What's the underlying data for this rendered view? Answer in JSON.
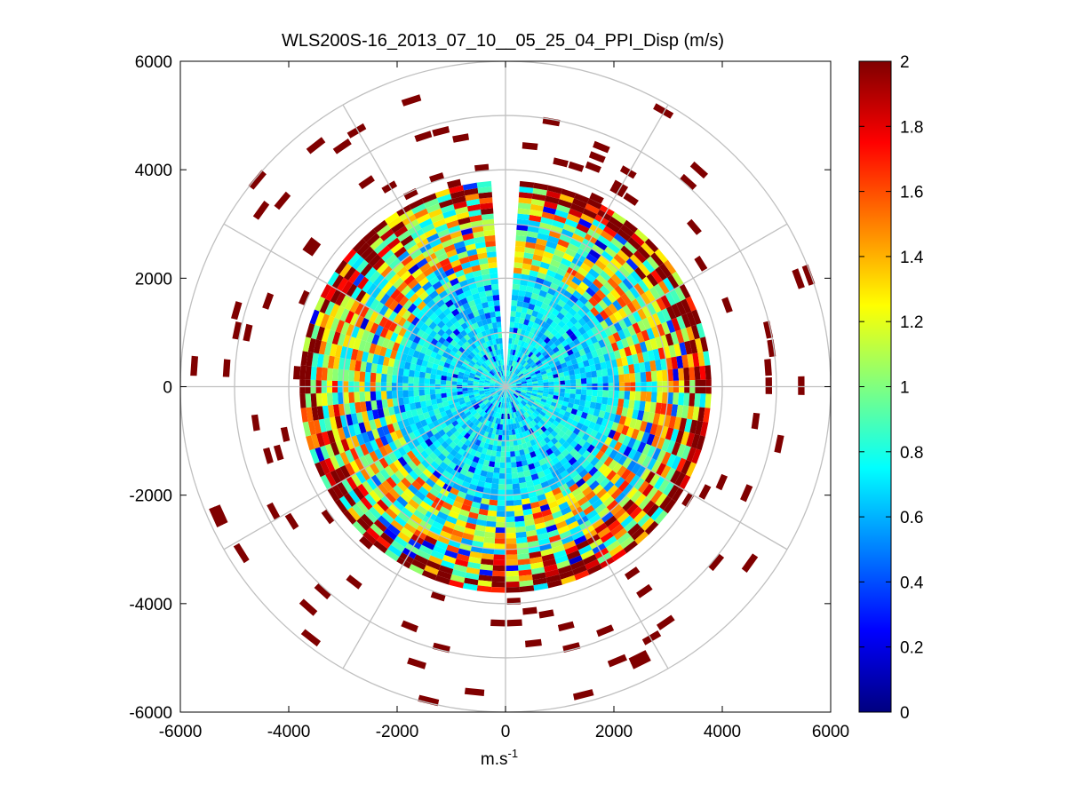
{
  "chart_data": {
    "type": "heatmap",
    "subtype": "polar-ppi",
    "title": "WLS200S-16_2013_07_10__05_25_04_PPI_Disp (m/s)",
    "xlabel": "m.s",
    "xlabel_superscript": "-1",
    "ylabel": "",
    "xlim": [
      -6000,
      6000
    ],
    "ylim": [
      -6000,
      6000
    ],
    "xticks": [
      "-6000",
      "-4000",
      "-2000",
      "0",
      "2000",
      "4000",
      "6000"
    ],
    "yticks": [
      "6000",
      "4000",
      "2000",
      "0",
      "-2000",
      "-4000",
      "-6000"
    ],
    "xtick_values": [
      -6000,
      -4000,
      -2000,
      0,
      2000,
      4000,
      6000
    ],
    "ytick_values": [
      6000,
      4000,
      2000,
      0,
      -2000,
      -4000,
      -6000
    ],
    "polar_grid": {
      "ring_radii": [
        1000,
        2000,
        3000,
        4000,
        5000,
        6000
      ],
      "spoke_angles_deg": [
        0,
        30,
        60,
        90,
        120,
        150,
        180,
        210,
        240,
        270,
        300,
        330
      ]
    },
    "field": {
      "range_step": 100,
      "max_range_dense": 3800,
      "azimuth_step_deg": 4,
      "gap_azimuth_deg": [
        354,
        2
      ],
      "note": "Scan displacement magnitude; low values (~0.5-0.8) near center, increasing to 2 at outer edge"
    },
    "colorbar": {
      "colormap": "jet",
      "clim": [
        0,
        2
      ],
      "tick_labels": [
        "2",
        "1.8",
        "1.6",
        "1.4",
        "1.2",
        "1",
        "0.8",
        "0.6",
        "0.4",
        "0.2",
        "0"
      ],
      "tick_values": [
        2,
        1.8,
        1.6,
        1.4,
        1.2,
        1,
        0.8,
        0.6,
        0.4,
        0.2,
        0
      ]
    },
    "grid": true,
    "legend": "none"
  }
}
